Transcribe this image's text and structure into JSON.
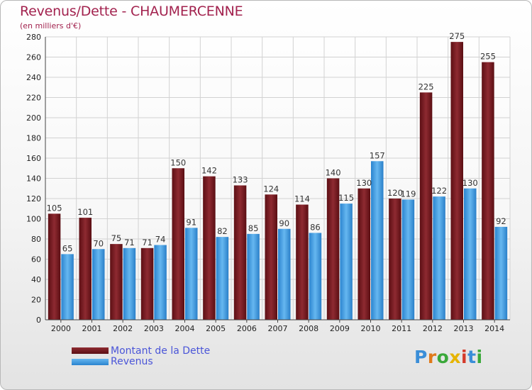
{
  "header": {
    "title": "Revenus/Dette - CHAUMERCENNE",
    "subtitle": "(en milliers d'€)"
  },
  "chart_data": {
    "type": "bar",
    "categories": [
      "2000",
      "2001",
      "2002",
      "2003",
      "2004",
      "2005",
      "2006",
      "2007",
      "2008",
      "2009",
      "2010",
      "2011",
      "2012",
      "2013",
      "2014"
    ],
    "series": [
      {
        "name": "Montant de la Dette",
        "color": "#7a1f24",
        "values": [
          105,
          101,
          75,
          71,
          150,
          142,
          133,
          124,
          114,
          140,
          130,
          120,
          225,
          275,
          255
        ]
      },
      {
        "name": "Revenus",
        "color": "#4aa3e6",
        "values": [
          65,
          70,
          71,
          74,
          91,
          82,
          85,
          90,
          86,
          115,
          157,
          119,
          122,
          130,
          92
        ]
      }
    ],
    "ylim": [
      0,
      280
    ],
    "yticks": [
      0,
      20,
      40,
      60,
      80,
      100,
      120,
      140,
      160,
      180,
      200,
      220,
      240,
      260,
      280
    ],
    "grid": true,
    "data_labels": true,
    "legend_position": "bottom-left"
  },
  "legend": {
    "items": [
      {
        "label": "Montant de la Dette"
      },
      {
        "label": "Revenus"
      }
    ]
  },
  "logo": {
    "letters": [
      {
        "char": "P",
        "color": "#3a8ed8"
      },
      {
        "char": "r",
        "color": "#e07a1a"
      },
      {
        "char": "o",
        "color": "#3aa83a"
      },
      {
        "char": "x",
        "color": "#e6b400"
      },
      {
        "char": "i",
        "color": "#d43a2a"
      },
      {
        "char": "t",
        "color": "#3a8ed8"
      },
      {
        "char": "i",
        "color": "#3aa83a"
      }
    ]
  }
}
